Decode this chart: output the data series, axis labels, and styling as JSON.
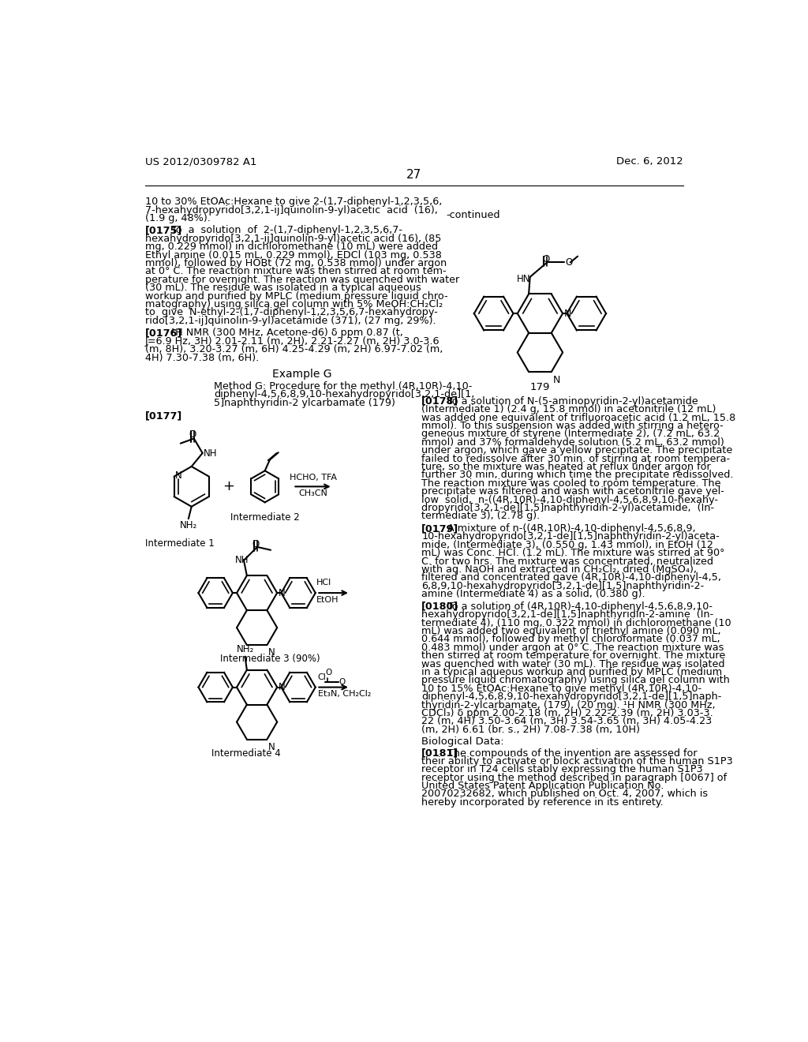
{
  "page_number": "27",
  "patent_number": "US 2012/0309782 A1",
  "patent_date": "Dec. 6, 2012",
  "background_color": "#ffffff"
}
